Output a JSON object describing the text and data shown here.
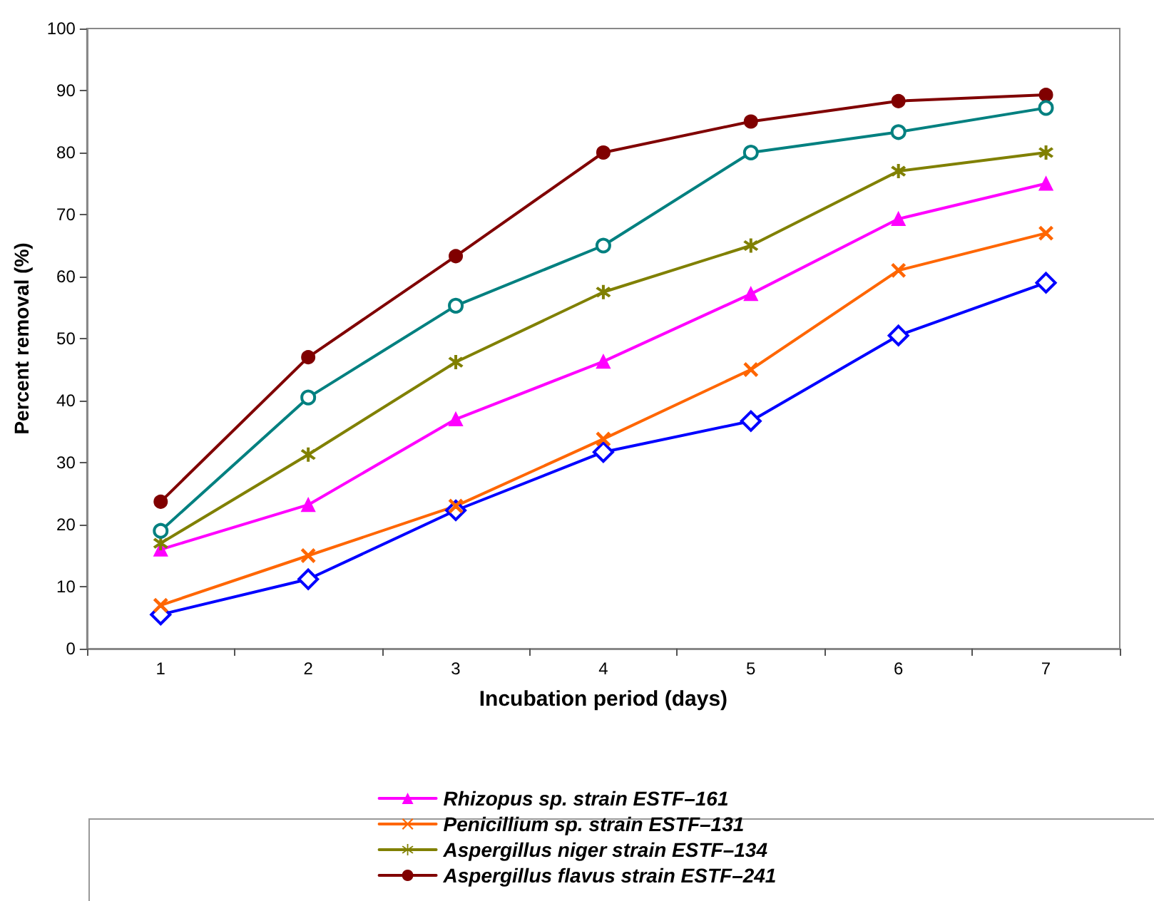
{
  "chart_data": {
    "type": "line",
    "xlabel": "Incubation period (days)",
    "ylabel": "Percent removal (%)",
    "categories": [
      "1",
      "2",
      "3",
      "4",
      "5",
      "6",
      "7"
    ],
    "ylim": [
      0,
      100
    ],
    "yticks": [
      0,
      10,
      20,
      30,
      40,
      50,
      60,
      70,
      80,
      90,
      100
    ],
    "grid": false,
    "legend": "bottom",
    "line_style": "solid",
    "series": [
      {
        "color": "#0000ff",
        "marker": "diamond",
        "values": [
          5.5,
          11.2,
          22.3,
          31.7,
          36.7,
          50.5,
          59
        ]
      },
      {
        "name": "Rhizopus sp. strain ESTF–161",
        "color": "#ff00ff",
        "marker": "triangle",
        "values": [
          16,
          23.2,
          37,
          46.3,
          57.2,
          69.3,
          75
        ]
      },
      {
        "name": "Penicillium sp. strain ESTF–131",
        "color": "#ff6600",
        "marker": "cross",
        "values": [
          7,
          15,
          23,
          33.8,
          45,
          61,
          67
        ]
      },
      {
        "name": "Aspergillus niger strain ESTF–134",
        "color": "#808000",
        "marker": "star",
        "values": [
          17,
          31.3,
          46.2,
          57.5,
          65,
          77,
          80
        ]
      },
      {
        "name": "Aspergillus flavus strain ESTF–241",
        "color": "#800000",
        "marker": "circle",
        "values": [
          23.7,
          47,
          63.3,
          80,
          85,
          88.3,
          89.3
        ]
      },
      {
        "color": "#008080",
        "marker": "circle",
        "values": [
          19,
          40.5,
          55.3,
          65,
          80,
          83.3,
          87.2
        ]
      }
    ]
  }
}
